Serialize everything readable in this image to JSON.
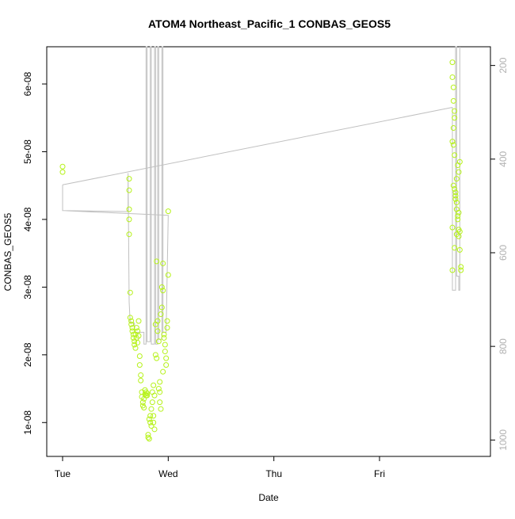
{
  "chart_data": {
    "type": "scatter",
    "title": "ATOM4 Northeast_Pacific_1 CONBAS_GEOS5",
    "xlabel": "Date",
    "ylabel": "CONBAS_GEOS5",
    "x_ticks": [
      "Tue",
      "Wed",
      "Thu",
      "Fri"
    ],
    "y_ticks": [
      {
        "value": 1e-08,
        "label": "1e-08"
      },
      {
        "value": 2e-08,
        "label": "2e-08"
      },
      {
        "value": 3e-08,
        "label": "3e-08"
      },
      {
        "value": 4e-08,
        "label": "4e-08"
      },
      {
        "value": 5e-08,
        "label": "5e-08"
      },
      {
        "value": 6e-08,
        "label": "6e-08"
      }
    ],
    "y2_ticks": [
      {
        "value": 200,
        "label": "200"
      },
      {
        "value": 400,
        "label": "400"
      },
      {
        "value": 600,
        "label": "600"
      },
      {
        "value": 800,
        "label": "800"
      },
      {
        "value": 1000,
        "label": "1000"
      }
    ],
    "xlim": [
      0,
      3.9
    ],
    "ylim": [
      5e-09,
      6.55e-08
    ],
    "y2lim": [
      1035,
      160
    ],
    "y2_reversed": true,
    "point_color": "#b6f21a",
    "line_color": "#c0c0c0",
    "series": [
      {
        "kind": "points",
        "points": [
          [
            0.0,
            4.78e-08
          ],
          [
            0.0,
            4.7e-08
          ],
          [
            0.63,
            4.6e-08
          ],
          [
            0.63,
            4.43e-08
          ],
          [
            0.63,
            4.15e-08
          ],
          [
            0.63,
            4e-08
          ],
          [
            0.63,
            3.78e-08
          ],
          [
            0.64,
            2.92e-08
          ],
          [
            0.64,
            2.55e-08
          ],
          [
            0.65,
            2.5e-08
          ],
          [
            0.65,
            2.45e-08
          ],
          [
            0.66,
            2.4e-08
          ],
          [
            0.66,
            2.35e-08
          ],
          [
            0.67,
            2.3e-08
          ],
          [
            0.67,
            2.25e-08
          ],
          [
            0.68,
            2.2e-08
          ],
          [
            0.68,
            2.15e-08
          ],
          [
            0.69,
            2.1e-08
          ],
          [
            0.69,
            2.3e-08
          ],
          [
            0.7,
            2.4e-08
          ],
          [
            0.7,
            2.25e-08
          ],
          [
            0.71,
            2.35e-08
          ],
          [
            0.71,
            2.18e-08
          ],
          [
            0.72,
            2.5e-08
          ],
          [
            0.72,
            2.28e-08
          ],
          [
            0.73,
            1.98e-08
          ],
          [
            0.73,
            1.85e-08
          ],
          [
            0.74,
            1.7e-08
          ],
          [
            0.74,
            1.62e-08
          ],
          [
            0.75,
            1.45e-08
          ],
          [
            0.75,
            1.38e-08
          ],
          [
            0.76,
            1.3e-08
          ],
          [
            0.76,
            1.25e-08
          ],
          [
            0.77,
            1.22e-08
          ],
          [
            0.77,
            1.35e-08
          ],
          [
            0.78,
            1.42e-08
          ],
          [
            0.78,
            1.48e-08
          ],
          [
            0.79,
            1.4e-08
          ],
          [
            0.79,
            1.45e-08
          ],
          [
            0.8,
            1.43e-08
          ],
          [
            0.8,
            1.4e-08
          ],
          [
            0.81,
            8.2e-09
          ],
          [
            0.81,
            7.8e-09
          ],
          [
            0.82,
            7.6e-09
          ],
          [
            0.82,
            1.05e-08
          ],
          [
            0.83,
            1.1e-08
          ],
          [
            0.83,
            1e-08
          ],
          [
            0.84,
            9.5e-09
          ],
          [
            0.84,
            1.2e-08
          ],
          [
            0.85,
            1.3e-08
          ],
          [
            0.85,
            1.45e-08
          ],
          [
            0.86,
            1.1e-08
          ],
          [
            0.86,
            1e-08
          ],
          [
            0.87,
            9e-09
          ],
          [
            0.87,
            1.4e-08
          ],
          [
            0.88,
            2.45e-08
          ],
          [
            0.88,
            2e-08
          ],
          [
            0.89,
            1.95e-08
          ],
          [
            0.89,
            3.38e-08
          ],
          [
            0.9,
            2.5e-08
          ],
          [
            0.9,
            2.35e-08
          ],
          [
            0.91,
            2.2e-08
          ],
          [
            0.91,
            1.5e-08
          ],
          [
            0.92,
            1.45e-08
          ],
          [
            0.92,
            1.3e-08
          ],
          [
            0.93,
            1.2e-08
          ],
          [
            0.93,
            2.6e-08
          ],
          [
            0.94,
            2.7e-08
          ],
          [
            0.94,
            3e-08
          ],
          [
            0.95,
            2.95e-08
          ],
          [
            0.95,
            3.35e-08
          ],
          [
            0.96,
            2.3e-08
          ],
          [
            0.96,
            2.25e-08
          ],
          [
            0.97,
            2.15e-08
          ],
          [
            0.97,
            2.05e-08
          ],
          [
            0.98,
            1.95e-08
          ],
          [
            0.98,
            1.85e-08
          ],
          [
            0.99,
            2.4e-08
          ],
          [
            0.99,
            2.5e-08
          ],
          [
            1.0,
            3.18e-08
          ],
          [
            1.0,
            4.12e-08
          ],
          [
            0.95,
            1.75e-08
          ],
          [
            0.92,
            1.6e-08
          ],
          [
            0.86,
            1.55e-08
          ],
          [
            3.69,
            6.32e-08
          ],
          [
            3.69,
            6.1e-08
          ],
          [
            3.7,
            5.95e-08
          ],
          [
            3.7,
            5.75e-08
          ],
          [
            3.71,
            5.6e-08
          ],
          [
            3.71,
            5.5e-08
          ],
          [
            3.7,
            5.35e-08
          ],
          [
            3.69,
            5.15e-08
          ],
          [
            3.7,
            5.1e-08
          ],
          [
            3.71,
            4.95e-08
          ],
          [
            3.7,
            4.5e-08
          ],
          [
            3.71,
            4.45e-08
          ],
          [
            3.72,
            4.4e-08
          ],
          [
            3.72,
            4.3e-08
          ],
          [
            3.73,
            4.25e-08
          ],
          [
            3.73,
            4.15e-08
          ],
          [
            3.74,
            4.05e-08
          ],
          [
            3.74,
            4e-08
          ],
          [
            3.75,
            3.85e-08
          ],
          [
            3.75,
            3.75e-08
          ],
          [
            3.76,
            3.82e-08
          ],
          [
            3.76,
            3.55e-08
          ],
          [
            3.77,
            3.3e-08
          ],
          [
            3.77,
            3.25e-08
          ],
          [
            3.74,
            4.8e-08
          ],
          [
            3.75,
            4.7e-08
          ],
          [
            3.73,
            4.6e-08
          ],
          [
            3.72,
            4.35e-08
          ],
          [
            3.76,
            4.85e-08
          ],
          [
            3.69,
            3.88e-08
          ],
          [
            3.69,
            3.25e-08
          ],
          [
            3.71,
            3.58e-08
          ],
          [
            3.73,
            3.78e-08
          ],
          [
            3.75,
            4.1e-08
          ]
        ]
      },
      {
        "kind": "line",
        "axis": "y2",
        "points": [
          [
            0.0,
            480
          ],
          [
            0.0,
            455
          ],
          [
            0.0,
            510
          ],
          [
            0.62,
            512
          ],
          [
            0.62,
            430
          ],
          [
            0.63,
            705
          ],
          [
            0.64,
            750
          ],
          [
            0.68,
            750
          ],
          [
            0.68,
            770
          ],
          [
            0.77,
            770
          ],
          [
            0.77,
            795
          ],
          [
            0.79,
            795
          ],
          [
            0.79,
            160
          ],
          [
            0.8,
            160
          ],
          [
            0.8,
            790
          ],
          [
            0.83,
            790
          ],
          [
            0.83,
            160
          ],
          [
            0.84,
            160
          ],
          [
            0.84,
            795
          ],
          [
            0.87,
            795
          ],
          [
            0.87,
            160
          ],
          [
            0.88,
            160
          ],
          [
            0.88,
            795
          ],
          [
            0.9,
            795
          ],
          [
            0.9,
            160
          ],
          [
            0.91,
            160
          ],
          [
            0.91,
            785
          ],
          [
            0.94,
            785
          ],
          [
            0.94,
            160
          ],
          [
            0.95,
            160
          ],
          [
            0.95,
            770
          ],
          [
            0.98,
            770
          ],
          [
            0.98,
            770
          ],
          [
            1.0,
            520
          ],
          [
            0.0,
            510
          ]
        ]
      },
      {
        "kind": "line",
        "axis": "y2",
        "points": [
          [
            0.0,
            455
          ],
          [
            3.68,
            290
          ],
          [
            3.69,
            290
          ],
          [
            3.69,
            680
          ],
          [
            3.72,
            680
          ],
          [
            3.72,
            160
          ],
          [
            3.73,
            160
          ],
          [
            3.73,
            650
          ],
          [
            3.75,
            650
          ],
          [
            3.75,
            680
          ],
          [
            3.76,
            680
          ],
          [
            3.76,
            160
          ]
        ]
      }
    ]
  }
}
